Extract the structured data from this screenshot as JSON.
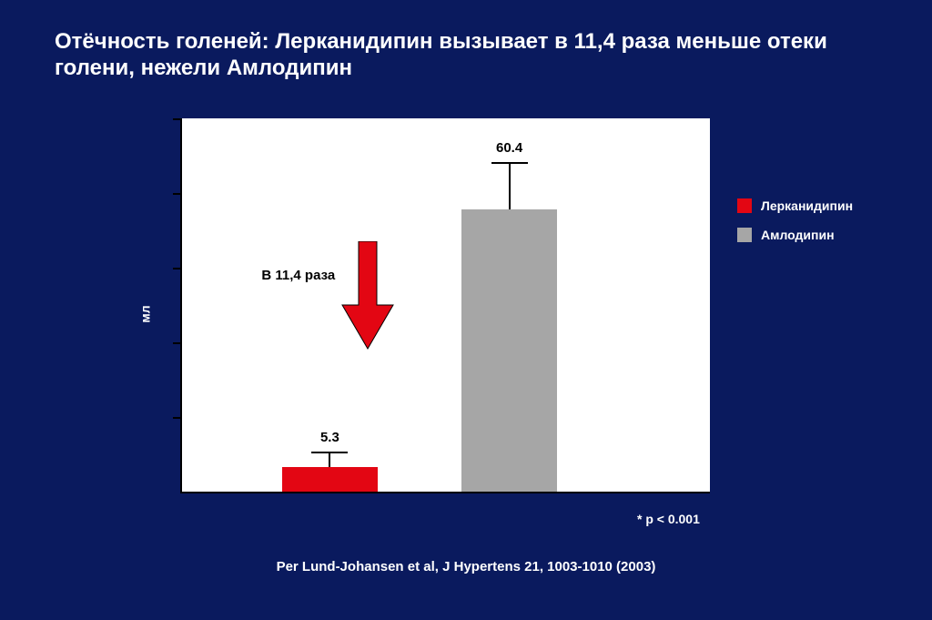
{
  "title": "Отёчность голеней: Лерканидипин вызывает в 11,4 раза меньше отеки голени, нежели Амлодипин",
  "background_color": "#0a1a5e",
  "chart": {
    "type": "bar",
    "plot_bg": "#ffffff",
    "axis_color": "#000000",
    "ylabel": "мл",
    "ylim": [
      0,
      80
    ],
    "ytick_count": 5,
    "bars": [
      {
        "name": "lercanidipine",
        "value": 5.3,
        "value_label": "5.3",
        "error": 3.0,
        "color": "#e30613",
        "x_pct": 28,
        "width_pct": 18
      },
      {
        "name": "amlodipine",
        "value": 60.4,
        "value_label": "60.4",
        "error": 10.0,
        "color": "#a6a6a6",
        "x_pct": 62,
        "width_pct": 18
      }
    ],
    "annotation": {
      "text": "В 11,4 раза",
      "arrow_color": "#e30613",
      "arrow_stroke": "#000000"
    }
  },
  "legend": {
    "items": [
      {
        "label": "Лерканидипин",
        "color": "#e30613"
      },
      {
        "label": "Амлодипин",
        "color": "#a6a6a6"
      }
    ]
  },
  "pnote": "*  p < 0.001",
  "citation": "Per Lund-Johansen et al, J Hypertens 21, 1003-1010 (2003)"
}
